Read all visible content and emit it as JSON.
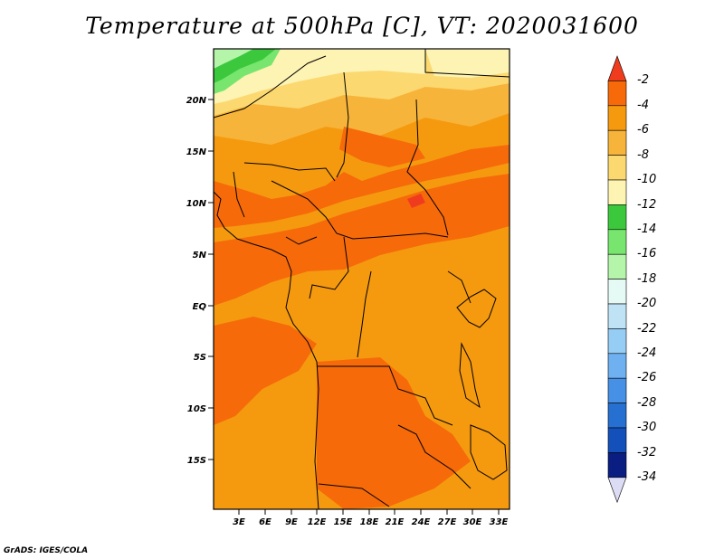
{
  "title": "Temperature at 500hPa [C], VT: 2020031600",
  "footer": "GrADS: IGES/COLA",
  "map": {
    "lat_labels": [
      "20N",
      "15N",
      "10N",
      "5N",
      "EQ",
      "5S",
      "10S",
      "15S"
    ],
    "lon_labels": [
      "3E",
      "6E",
      "9E",
      "12E",
      "15E",
      "18E",
      "21E",
      "24E",
      "27E",
      "30E",
      "33E"
    ]
  },
  "colorbar": {
    "labels": [
      "-2",
      "-4",
      "-6",
      "-8",
      "-10",
      "-12",
      "-14",
      "-16",
      "-18",
      "-20",
      "-22",
      "-24",
      "-26",
      "-28",
      "-30",
      "-32",
      "-34"
    ],
    "colors": [
      "#f03c1e",
      "#f66a0a",
      "#f59a0f",
      "#f7b43a",
      "#fcd870",
      "#fdf3b2",
      "#3cc83c",
      "#78e66e",
      "#b4f5aa",
      "#e6faf5",
      "#bfe3f5",
      "#96cdf5",
      "#6eb0f0",
      "#4690e6",
      "#2670d2",
      "#1450b9",
      "#0a1e82",
      "#dcdcf5"
    ]
  },
  "chart_data": {
    "type": "heatmap",
    "title": "Temperature at 500hPa [C], VT: 2020031600",
    "variable": "Temperature at 500hPa",
    "unit": "C",
    "valid_time": "2020031600",
    "lon_range": [
      0,
      34
    ],
    "lat_range": [
      -19,
      24
    ],
    "color_levels": [
      -34,
      -32,
      -30,
      -28,
      -26,
      -24,
      -22,
      -20,
      -18,
      -16,
      -14,
      -12,
      -10,
      -8,
      -6,
      -4,
      -2
    ],
    "dominant_value_ranges": [
      {
        "region": "most of domain",
        "range": [
          -6,
          -4
        ]
      },
      {
        "region": "Gulf of Guinea / central band",
        "range": [
          -4,
          -2
        ]
      },
      {
        "region": "far north",
        "range": [
          -10,
          -8
        ]
      },
      {
        "region": "northwest corner",
        "range": [
          -16,
          -12
        ]
      }
    ]
  }
}
